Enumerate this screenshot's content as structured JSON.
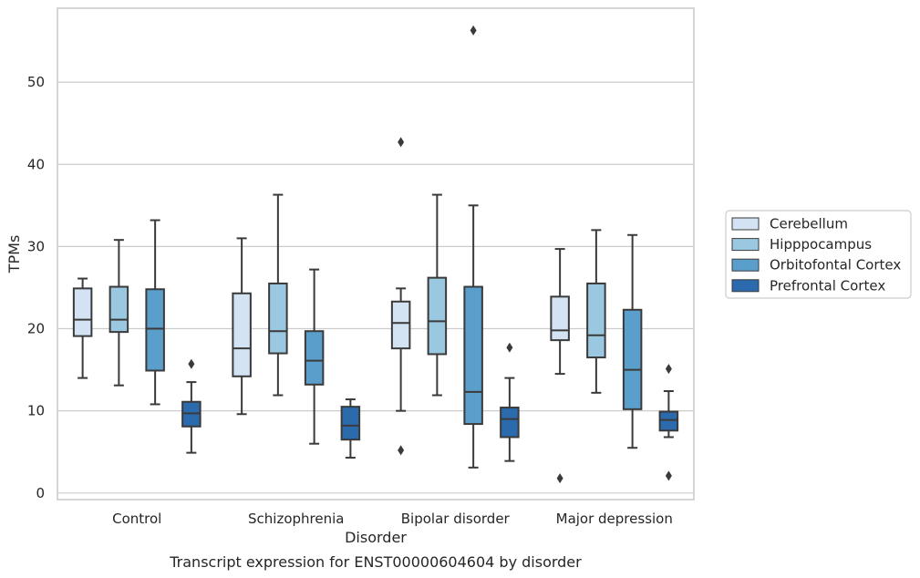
{
  "chart_data": {
    "type": "box",
    "xlabel": "Disorder",
    "ylabel": "TPMs",
    "caption": "Transcript expression for ENST00000604604 by disorder",
    "ylim": [
      -0.8,
      59
    ],
    "yticks": [
      0,
      10,
      20,
      30,
      40,
      50
    ],
    "grid": "horizontal",
    "legend_placement": "right-center",
    "categories": [
      "Control",
      "Schizophrenia",
      "Bipolar disorder",
      "Major depression"
    ],
    "series": [
      {
        "name": "Cerebellum",
        "color": "#d3e3f3",
        "boxes": [
          {
            "whislo": 14.0,
            "q1": 19.1,
            "med": 21.1,
            "q3": 24.9,
            "whishi": 26.1,
            "fliers": []
          },
          {
            "whislo": 9.6,
            "q1": 14.2,
            "med": 17.6,
            "q3": 24.3,
            "whishi": 31.0,
            "fliers": []
          },
          {
            "whislo": 10.0,
            "q1": 17.6,
            "med": 20.7,
            "q3": 23.3,
            "whishi": 24.9,
            "fliers": [
              42.7,
              5.2
            ]
          },
          {
            "whislo": 14.5,
            "q1": 18.6,
            "med": 19.8,
            "q3": 23.9,
            "whishi": 29.7,
            "fliers": [
              1.8
            ]
          }
        ]
      },
      {
        "name": "Hipppocampus",
        "color": "#9ac8e0",
        "boxes": [
          {
            "whislo": 13.1,
            "q1": 19.6,
            "med": 21.1,
            "q3": 25.1,
            "whishi": 30.8,
            "fliers": []
          },
          {
            "whislo": 11.9,
            "q1": 17.0,
            "med": 19.7,
            "q3": 25.5,
            "whishi": 36.3,
            "fliers": []
          },
          {
            "whislo": 11.9,
            "q1": 16.9,
            "med": 20.9,
            "q3": 26.2,
            "whishi": 36.3,
            "fliers": []
          },
          {
            "whislo": 12.2,
            "q1": 16.5,
            "med": 19.2,
            "q3": 25.5,
            "whishi": 32.0,
            "fliers": []
          }
        ]
      },
      {
        "name": "Orbitofontal Cortex",
        "color": "#5a9fcb",
        "boxes": [
          {
            "whislo": 10.8,
            "q1": 14.9,
            "med": 20.0,
            "q3": 24.8,
            "whishi": 33.2,
            "fliers": []
          },
          {
            "whislo": 6.0,
            "q1": 13.2,
            "med": 16.1,
            "q3": 19.7,
            "whishi": 27.2,
            "fliers": []
          },
          {
            "whislo": 3.1,
            "q1": 8.4,
            "med": 12.3,
            "q3": 25.1,
            "whishi": 35.0,
            "fliers": [
              56.3
            ]
          },
          {
            "whislo": 5.5,
            "q1": 10.2,
            "med": 15.0,
            "q3": 22.3,
            "whishi": 31.4,
            "fliers": []
          }
        ]
      },
      {
        "name": "Prefrontal Cortex",
        "color": "#2a6aad",
        "boxes": [
          {
            "whislo": 4.9,
            "q1": 8.1,
            "med": 9.7,
            "q3": 11.1,
            "whishi": 13.5,
            "fliers": [
              15.7
            ]
          },
          {
            "whislo": 4.3,
            "q1": 6.5,
            "med": 8.2,
            "q3": 10.5,
            "whishi": 11.4,
            "fliers": []
          },
          {
            "whislo": 3.9,
            "q1": 6.8,
            "med": 9.0,
            "q3": 10.4,
            "whishi": 14.0,
            "fliers": [
              17.7
            ]
          },
          {
            "whislo": 6.8,
            "q1": 7.6,
            "med": 8.9,
            "q3": 9.9,
            "whishi": 12.4,
            "fliers": [
              15.1,
              2.1
            ]
          }
        ]
      }
    ]
  }
}
